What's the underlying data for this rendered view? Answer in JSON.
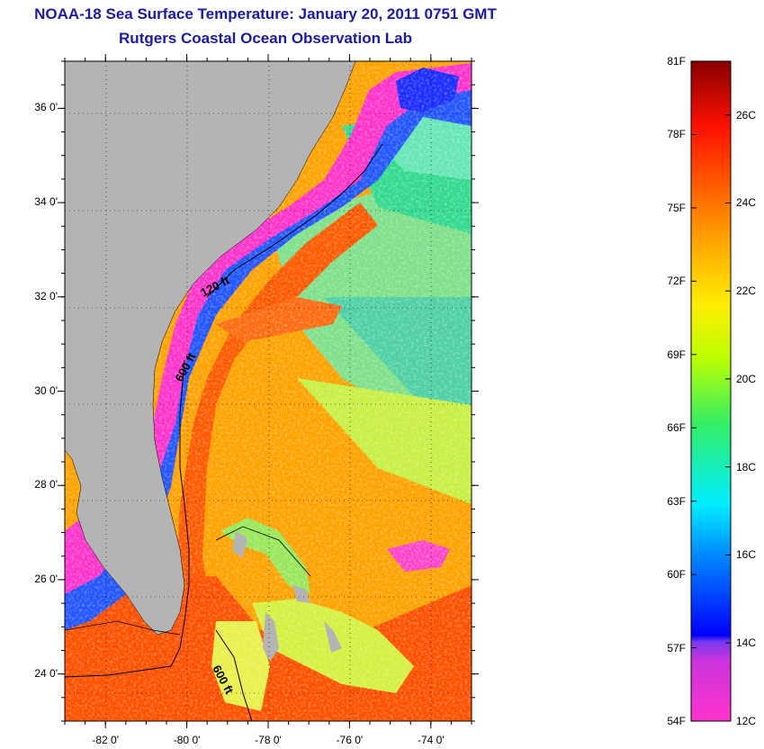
{
  "title": "NOAA-18 Sea Surface Temperature:  January 20, 2011 0751 GMT",
  "subtitle": "Rutgers Coastal Ocean Observation Lab",
  "map": {
    "lat_labels": [
      "36 0'",
      "34 0'",
      "32 0'",
      "30 0'",
      "28 0'",
      "26 0'",
      "24 0'"
    ],
    "lat_values": [
      36,
      34,
      32,
      30,
      28,
      26,
      24
    ],
    "lon_labels": [
      "-82 0'",
      "-80 0'",
      "-78 0'",
      "-76 0'",
      "-74 0'"
    ],
    "lon_values": [
      -82,
      -80,
      -78,
      -76,
      -74
    ],
    "lat_range": [
      23,
      37
    ],
    "lon_range": [
      -83,
      -73
    ],
    "contour_labels": [
      "120 ft",
      "600 ft",
      "600 ft"
    ]
  },
  "colorbar": {
    "f_labels": [
      "81F",
      "78F",
      "75F",
      "72F",
      "69F",
      "66F",
      "63F",
      "60F",
      "57F",
      "54F"
    ],
    "c_labels": [
      "26C",
      "24C",
      "22C",
      "20C",
      "18C",
      "16C",
      "14C",
      "12C"
    ],
    "colors": {
      "magenta": "#ff33cc",
      "purple": "#8833ee",
      "blue": "#0000ff",
      "cyan": "#00eeff",
      "green": "#33dd66",
      "yellow": "#ffff00",
      "orange": "#ff9900",
      "red": "#ff2200",
      "darkred": "#8b0000"
    }
  }
}
